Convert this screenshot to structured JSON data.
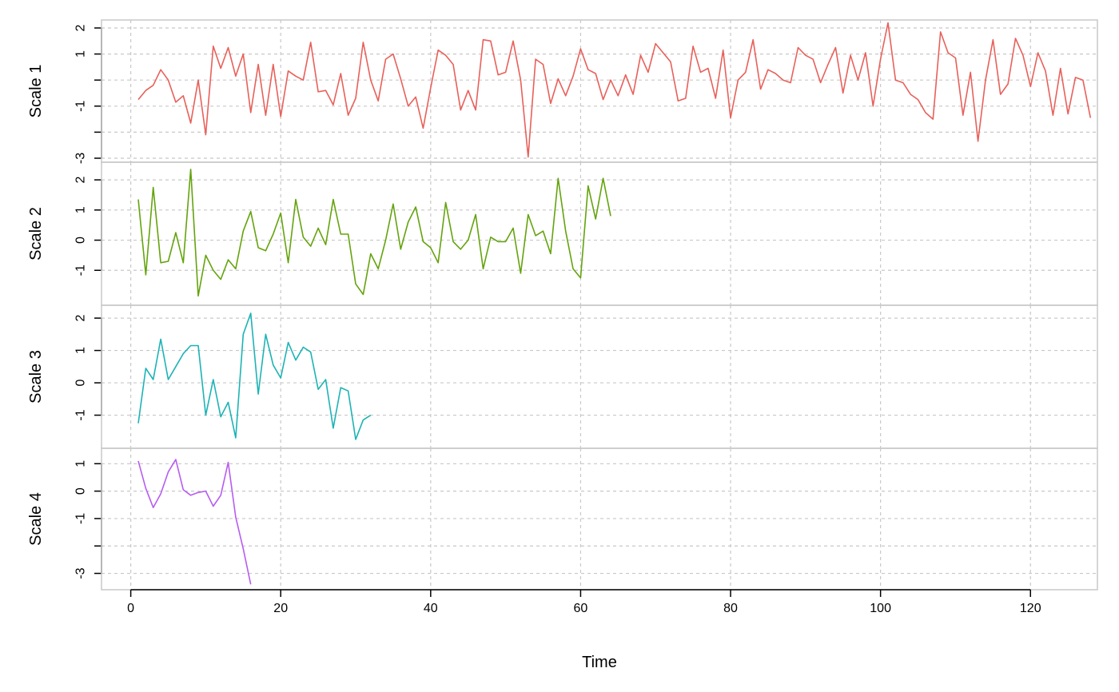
{
  "chart_data": {
    "type": "line",
    "xlabel": "Time",
    "xlim": [
      0,
      128
    ],
    "xticks": [
      0,
      20,
      40,
      60,
      80,
      100,
      120
    ],
    "grid": true,
    "panels": [
      {
        "ylabel": "Scale 1",
        "color": "#E8605A",
        "ylim": [
          -3,
          2
        ],
        "yticks": [
          2,
          1,
          0,
          -1,
          -2,
          -3
        ],
        "ytick_labels": [
          "2",
          "1",
          "",
          "-1",
          "",
          "-3"
        ],
        "x_start": 1,
        "values": [
          -0.75,
          -0.4,
          -0.2,
          0.4,
          0,
          -0.85,
          -0.6,
          -1.65,
          0,
          -2.1,
          1.3,
          0.45,
          1.25,
          0.15,
          1,
          -1.25,
          0.6,
          -1.35,
          0.6,
          -1.4,
          0.35,
          0.15,
          0,
          1.45,
          -0.45,
          -0.4,
          -0.95,
          0.25,
          -1.35,
          -0.7,
          1.45,
          0,
          -0.8,
          0.8,
          1,
          0.05,
          -1,
          -0.65,
          -1.85,
          -0.3,
          1.15,
          0.95,
          0.6,
          -1.15,
          -0.4,
          -1.15,
          1.55,
          1.5,
          0.2,
          0.3,
          1.5,
          0,
          -2.95,
          0.8,
          0.6,
          -0.9,
          0.05,
          -0.6,
          0.15,
          1.2,
          0.4,
          0.25,
          -0.75,
          0,
          -0.6,
          0.2,
          -0.55,
          0.95,
          0.3,
          1.4,
          1.05,
          0.7,
          -0.8,
          -0.7,
          1.3,
          0.3,
          0.45,
          -0.7,
          1.15,
          -1.45,
          0,
          0.3,
          1.55,
          -0.35,
          0.4,
          0.25,
          0,
          -0.1,
          1.25,
          0.95,
          0.8,
          -0.1,
          0.6,
          1.25,
          -0.5,
          0.95,
          0,
          1.05,
          -1,
          0.8,
          2.2,
          0,
          -0.1,
          -0.55,
          -0.75,
          -1.25,
          -1.5,
          1.85,
          1.05,
          0.85,
          -1.35,
          0.3,
          -2.35,
          0,
          1.55,
          -0.55,
          -0.15,
          1.6,
          0.95,
          -0.25,
          1.05,
          0.35,
          -1.35,
          0.45,
          -1.3,
          0.1,
          0,
          -1.45
        ]
      },
      {
        "ylabel": "Scale 2",
        "color": "#64A30D",
        "ylim": [
          -2,
          2.4
        ],
        "yticks": [
          2,
          1,
          0,
          -1
        ],
        "ytick_labels": [
          "2",
          "1",
          "0",
          "-1"
        ],
        "x_start": 1,
        "values": [
          1.35,
          -1.15,
          1.75,
          -0.75,
          -0.7,
          0.25,
          -0.75,
          2.35,
          -1.85,
          -0.5,
          -1,
          -1.3,
          -0.65,
          -0.95,
          0.3,
          0.95,
          -0.25,
          -0.35,
          0.2,
          0.9,
          -0.75,
          1.35,
          0.1,
          -0.2,
          0.4,
          -0.15,
          1.35,
          0.2,
          0.2,
          -1.45,
          -1.8,
          -0.45,
          -0.95,
          0,
          1.2,
          -0.3,
          0.6,
          1.1,
          -0.05,
          -0.25,
          -0.75,
          1.25,
          -0.05,
          -0.3,
          0,
          0.85,
          -0.95,
          0.1,
          -0.05,
          -0.05,
          0.4,
          -1.1,
          0.85,
          0.15,
          0.3,
          -0.45,
          2.05,
          0.3,
          -0.95,
          -1.25,
          1.8,
          0.7,
          2.05,
          0.8
        ]
      },
      {
        "ylabel": "Scale 3",
        "color": "#1CB3B5",
        "ylim": [
          -1.9,
          2.2
        ],
        "yticks": [
          2,
          1,
          0,
          -1
        ],
        "ytick_labels": [
          "2",
          "1",
          "0",
          "-1"
        ],
        "x_start": 1,
        "values": [
          -1.25,
          0.45,
          0.1,
          1.35,
          0.1,
          0.5,
          0.9,
          1.15,
          1.15,
          -1,
          0.1,
          -1.05,
          -0.6,
          -1.7,
          1.5,
          2.15,
          -0.35,
          1.5,
          0.55,
          0.15,
          1.25,
          0.7,
          1.1,
          0.95,
          -0.2,
          0.1,
          -1.4,
          -0.15,
          -0.25,
          -1.75,
          -1.15,
          -1
        ]
      },
      {
        "ylabel": "Scale 4",
        "color": "#B75CF0",
        "ylim": [
          -3.45,
          1.3
        ],
        "yticks": [
          1,
          0,
          -1,
          -2,
          -3
        ],
        "ytick_labels": [
          "1",
          "0",
          "-1",
          "",
          "-3"
        ],
        "x_start": 1,
        "values": [
          1.1,
          0.1,
          -0.6,
          -0.1,
          0.7,
          1.15,
          0.05,
          -0.15,
          -0.05,
          0,
          -0.55,
          -0.15,
          1.05,
          -0.95,
          -2.1,
          -3.4
        ]
      }
    ]
  }
}
